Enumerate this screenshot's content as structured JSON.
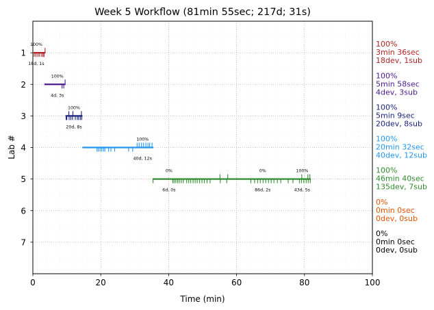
{
  "chart_data": {
    "type": "timeline",
    "title": "Week 5 Workflow (81min 55sec; 217d; 31s)",
    "xlabel": "Time (min)",
    "ylabel": "Lab #",
    "xlim": [
      0,
      100
    ],
    "ylim": [
      0,
      8
    ],
    "y_inverted": true,
    "xticks": [
      "0",
      "20",
      "40",
      "60",
      "80",
      "100"
    ],
    "yticks": [
      "1",
      "2",
      "3",
      "4",
      "5",
      "6",
      "7"
    ],
    "grid": true,
    "labs": [
      {
        "lab": 1,
        "color": "#b22222",
        "span": [
          0.2,
          3.7
        ],
        "dev_ticks": [
          0.4,
          0.9,
          1.5,
          2.0,
          2.6,
          3.0,
          3.3
        ],
        "sub_ticks": [
          3.6
        ],
        "annotations": [
          {
            "x": 1.0,
            "above": "100%",
            "below": "18d, 1s"
          }
        ],
        "summary": [
          "100%",
          "3min 36sec",
          "18dev, 1sub"
        ]
      },
      {
        "lab": 2,
        "color": "#4b1a8f",
        "span": [
          3.4,
          9.6
        ],
        "dev_ticks": [
          8.6,
          9.1
        ],
        "sub_ticks": [
          9.5
        ],
        "annotations": [
          {
            "x": 7.2,
            "above": "100%",
            "below": "4d, 3s"
          }
        ],
        "summary": [
          "100%",
          "5min 58sec",
          "4dev, 3sub"
        ]
      },
      {
        "lab": 3,
        "color": "#1a237e",
        "span": [
          9.6,
          14.6
        ],
        "dev_ticks": [
          9.8,
          10.0,
          10.7,
          11.2,
          11.7,
          12.5,
          13.1,
          13.5,
          14.0,
          14.4
        ],
        "sub_ticks": [
          10.6,
          11.8,
          14.3
        ],
        "annotations": [
          {
            "x": 12.1,
            "above": "100%",
            "below": "20d, 8s"
          }
        ],
        "summary": [
          "100%",
          "5min 9sec",
          "20dev, 8sub"
        ]
      },
      {
        "lab": 4,
        "color": "#2196f3",
        "span": [
          14.6,
          35.5
        ],
        "dev_ticks": [
          18.9,
          19.3,
          19.8,
          20.3,
          20.8,
          21.2,
          22.3,
          23.0,
          24.1,
          28.2,
          29.4
        ],
        "sub_ticks": [
          30.7,
          31.3,
          32.0,
          32.6,
          33.3,
          33.9,
          34.4,
          35.1
        ],
        "annotations": [
          {
            "x": 32.3,
            "above": "100%",
            "below": "40d, 12s"
          }
        ],
        "summary": [
          "100%",
          "20min 32sec",
          "40dev, 12sub"
        ]
      },
      {
        "lab": 5,
        "color": "#2e8b2e",
        "span": [
          35.3,
          81.9
        ],
        "dev_ticks": [
          35.4,
          41.2,
          41.6,
          42.1,
          42.6,
          43.1,
          43.7,
          44.3,
          45.3,
          45.9,
          46.5,
          47.2,
          47.8,
          48.4,
          49.1,
          49.8,
          50.5,
          51.3,
          52.2,
          55.2,
          57.1,
          64.2,
          65.3,
          66.2,
          67.0,
          67.8,
          68.6,
          69.4,
          70.2,
          71.0,
          72.0,
          73.0,
          75.2,
          76.6,
          78.5,
          79.1,
          79.8,
          80.5,
          81.1,
          81.7
        ],
        "sub_ticks": [
          55.1,
          57.4,
          79.2,
          81.0,
          81.6
        ],
        "annotations": [
          {
            "x": 40.1,
            "above": "0%",
            "below": "6d, 0s"
          },
          {
            "x": 67.7,
            "above": "0%",
            "below": "86d, 2s"
          },
          {
            "x": 79.3,
            "above": "100%",
            "below": "43d, 5s"
          }
        ],
        "summary": [
          "100%",
          "46min 40sec",
          "135dev, 7sub"
        ]
      },
      {
        "lab": 6,
        "color": "#e65100",
        "span": null,
        "dev_ticks": [],
        "sub_ticks": [],
        "annotations": [],
        "summary": [
          "0%",
          "0min 0sec",
          "0dev, 0sub"
        ]
      },
      {
        "lab": 7,
        "color": "#000000",
        "span": null,
        "dev_ticks": [],
        "sub_ticks": [],
        "annotations": [],
        "summary": [
          "0%",
          "0min 0sec",
          "0dev, 0sub"
        ]
      }
    ]
  }
}
